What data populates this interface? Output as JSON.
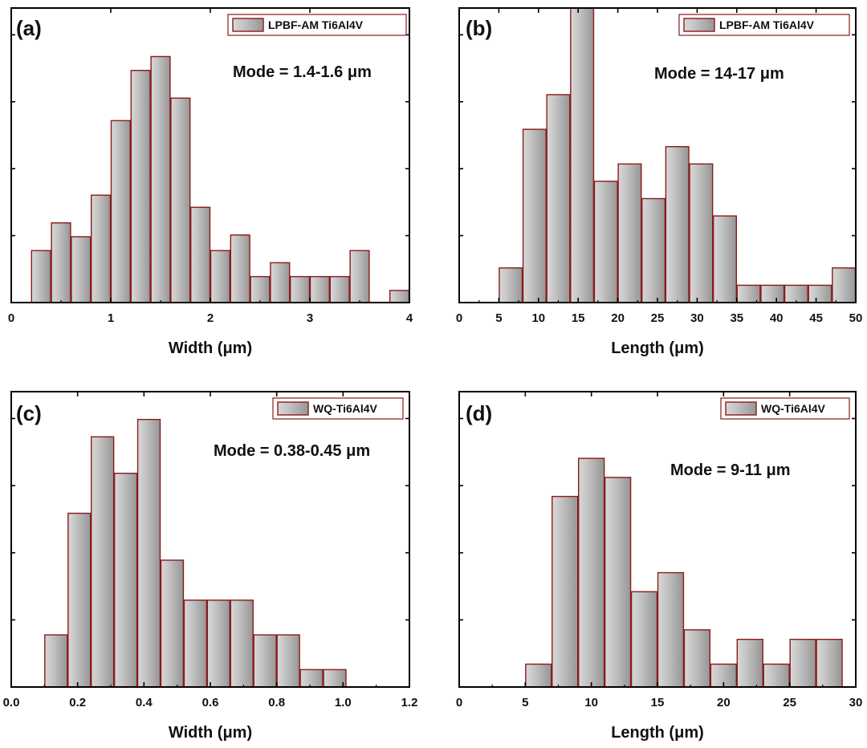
{
  "colors": {
    "bar_fill_light": "#d6d6d6",
    "bar_fill_dark": "#9a9a9a",
    "bar_edge": "#8a1a1a",
    "axis": "#000000"
  },
  "chart_data": [
    {
      "type": "bar",
      "panel": "(a)",
      "legend": "LPBF-AM Ti6Al4V",
      "annotation": "Mode = 1.4-1.6 μm",
      "xlabel": "Width (μm)",
      "ylabel": "",
      "xlim": [
        0,
        4
      ],
      "xticks": [
        0,
        1,
        2,
        3,
        4
      ],
      "xtick_labels": [
        "0",
        "1",
        "2",
        "3",
        "4"
      ],
      "ylim": [
        0,
        17
      ],
      "bin_width": 0.2,
      "bin_centers": [
        0.3,
        0.5,
        0.7,
        0.9,
        1.1,
        1.3,
        1.5,
        1.7,
        1.9,
        2.1,
        2.3,
        2.5,
        2.7,
        2.9,
        3.1,
        3.3,
        3.5,
        3.9
      ],
      "values": [
        3,
        4.6,
        3.8,
        6.2,
        10.5,
        13.4,
        14.2,
        11.8,
        5.5,
        3,
        3.9,
        1.5,
        2.3,
        1.5,
        1.5,
        1.5,
        3,
        0.7
      ],
      "legend_position": "top-right",
      "grid": false
    },
    {
      "type": "bar",
      "panel": "(b)",
      "legend": "LPBF-AM Ti6Al4V",
      "annotation": "Mode = 14-17 μm",
      "xlabel": "Length (μm)",
      "ylabel": "",
      "xlim": [
        0,
        50
      ],
      "xticks": [
        0,
        5,
        10,
        15,
        20,
        25,
        30,
        35,
        40,
        45,
        50
      ],
      "xtick_labels": [
        "0",
        "5",
        "10",
        "15",
        "20",
        "25",
        "30",
        "35",
        "40",
        "45",
        "50"
      ],
      "ylim": [
        0,
        17
      ],
      "bin_width": 3,
      "bin_centers": [
        6.5,
        9.5,
        12.5,
        15.5,
        18.5,
        21.5,
        24.5,
        27.5,
        30.5,
        33.5,
        36.5,
        39.5,
        42.5,
        45.5,
        48.5
      ],
      "values": [
        2,
        10,
        12,
        17,
        7,
        8,
        6,
        9,
        8,
        5,
        1,
        1,
        1,
        1,
        2
      ],
      "legend_position": "top-right",
      "grid": false
    },
    {
      "type": "bar",
      "panel": "(c)",
      "legend": "WQ-Ti6Al4V",
      "annotation": "Mode = 0.38-0.45 μm",
      "xlabel": "Width (μm)",
      "ylabel": "",
      "xlim": [
        0,
        1.2
      ],
      "xticks": [
        0,
        0.2,
        0.4,
        0.6,
        0.8,
        1.0,
        1.2
      ],
      "xtick_labels": [
        "0.0",
        "0.2",
        "0.4",
        "0.6",
        "0.8",
        "1.0",
        "1.2"
      ],
      "ylim": [
        0,
        17
      ],
      "bin_width": 0.07,
      "bin_centers": [
        0.135,
        0.205,
        0.275,
        0.345,
        0.415,
        0.485,
        0.555,
        0.625,
        0.695,
        0.765,
        0.835,
        0.905,
        0.975
      ],
      "values": [
        3,
        10,
        14.4,
        12.3,
        15.4,
        7.3,
        5,
        5,
        5,
        3,
        3,
        1,
        1
      ],
      "legend_position": "top-right",
      "grid": false
    },
    {
      "type": "bar",
      "panel": "(d)",
      "legend": "WQ-Ti6Al4V",
      "annotation": "Mode = 9-11 μm",
      "xlabel": "Length (μm)",
      "ylabel": "",
      "xlim": [
        0,
        30
      ],
      "xticks": [
        0,
        5,
        10,
        15,
        20,
        25,
        30
      ],
      "xtick_labels": [
        "0",
        "5",
        "10",
        "15",
        "20",
        "25",
        "30"
      ],
      "ylim": [
        0,
        15.5
      ],
      "bin_width": 2,
      "bin_centers": [
        6,
        8,
        10,
        12,
        14,
        16,
        18,
        20,
        22,
        24,
        26,
        28
      ],
      "values": [
        1.2,
        10,
        12,
        11,
        5,
        6,
        3,
        1.2,
        2.5,
        1.2,
        2.5,
        2.5
      ],
      "legend_position": "top-right",
      "grid": false
    }
  ]
}
